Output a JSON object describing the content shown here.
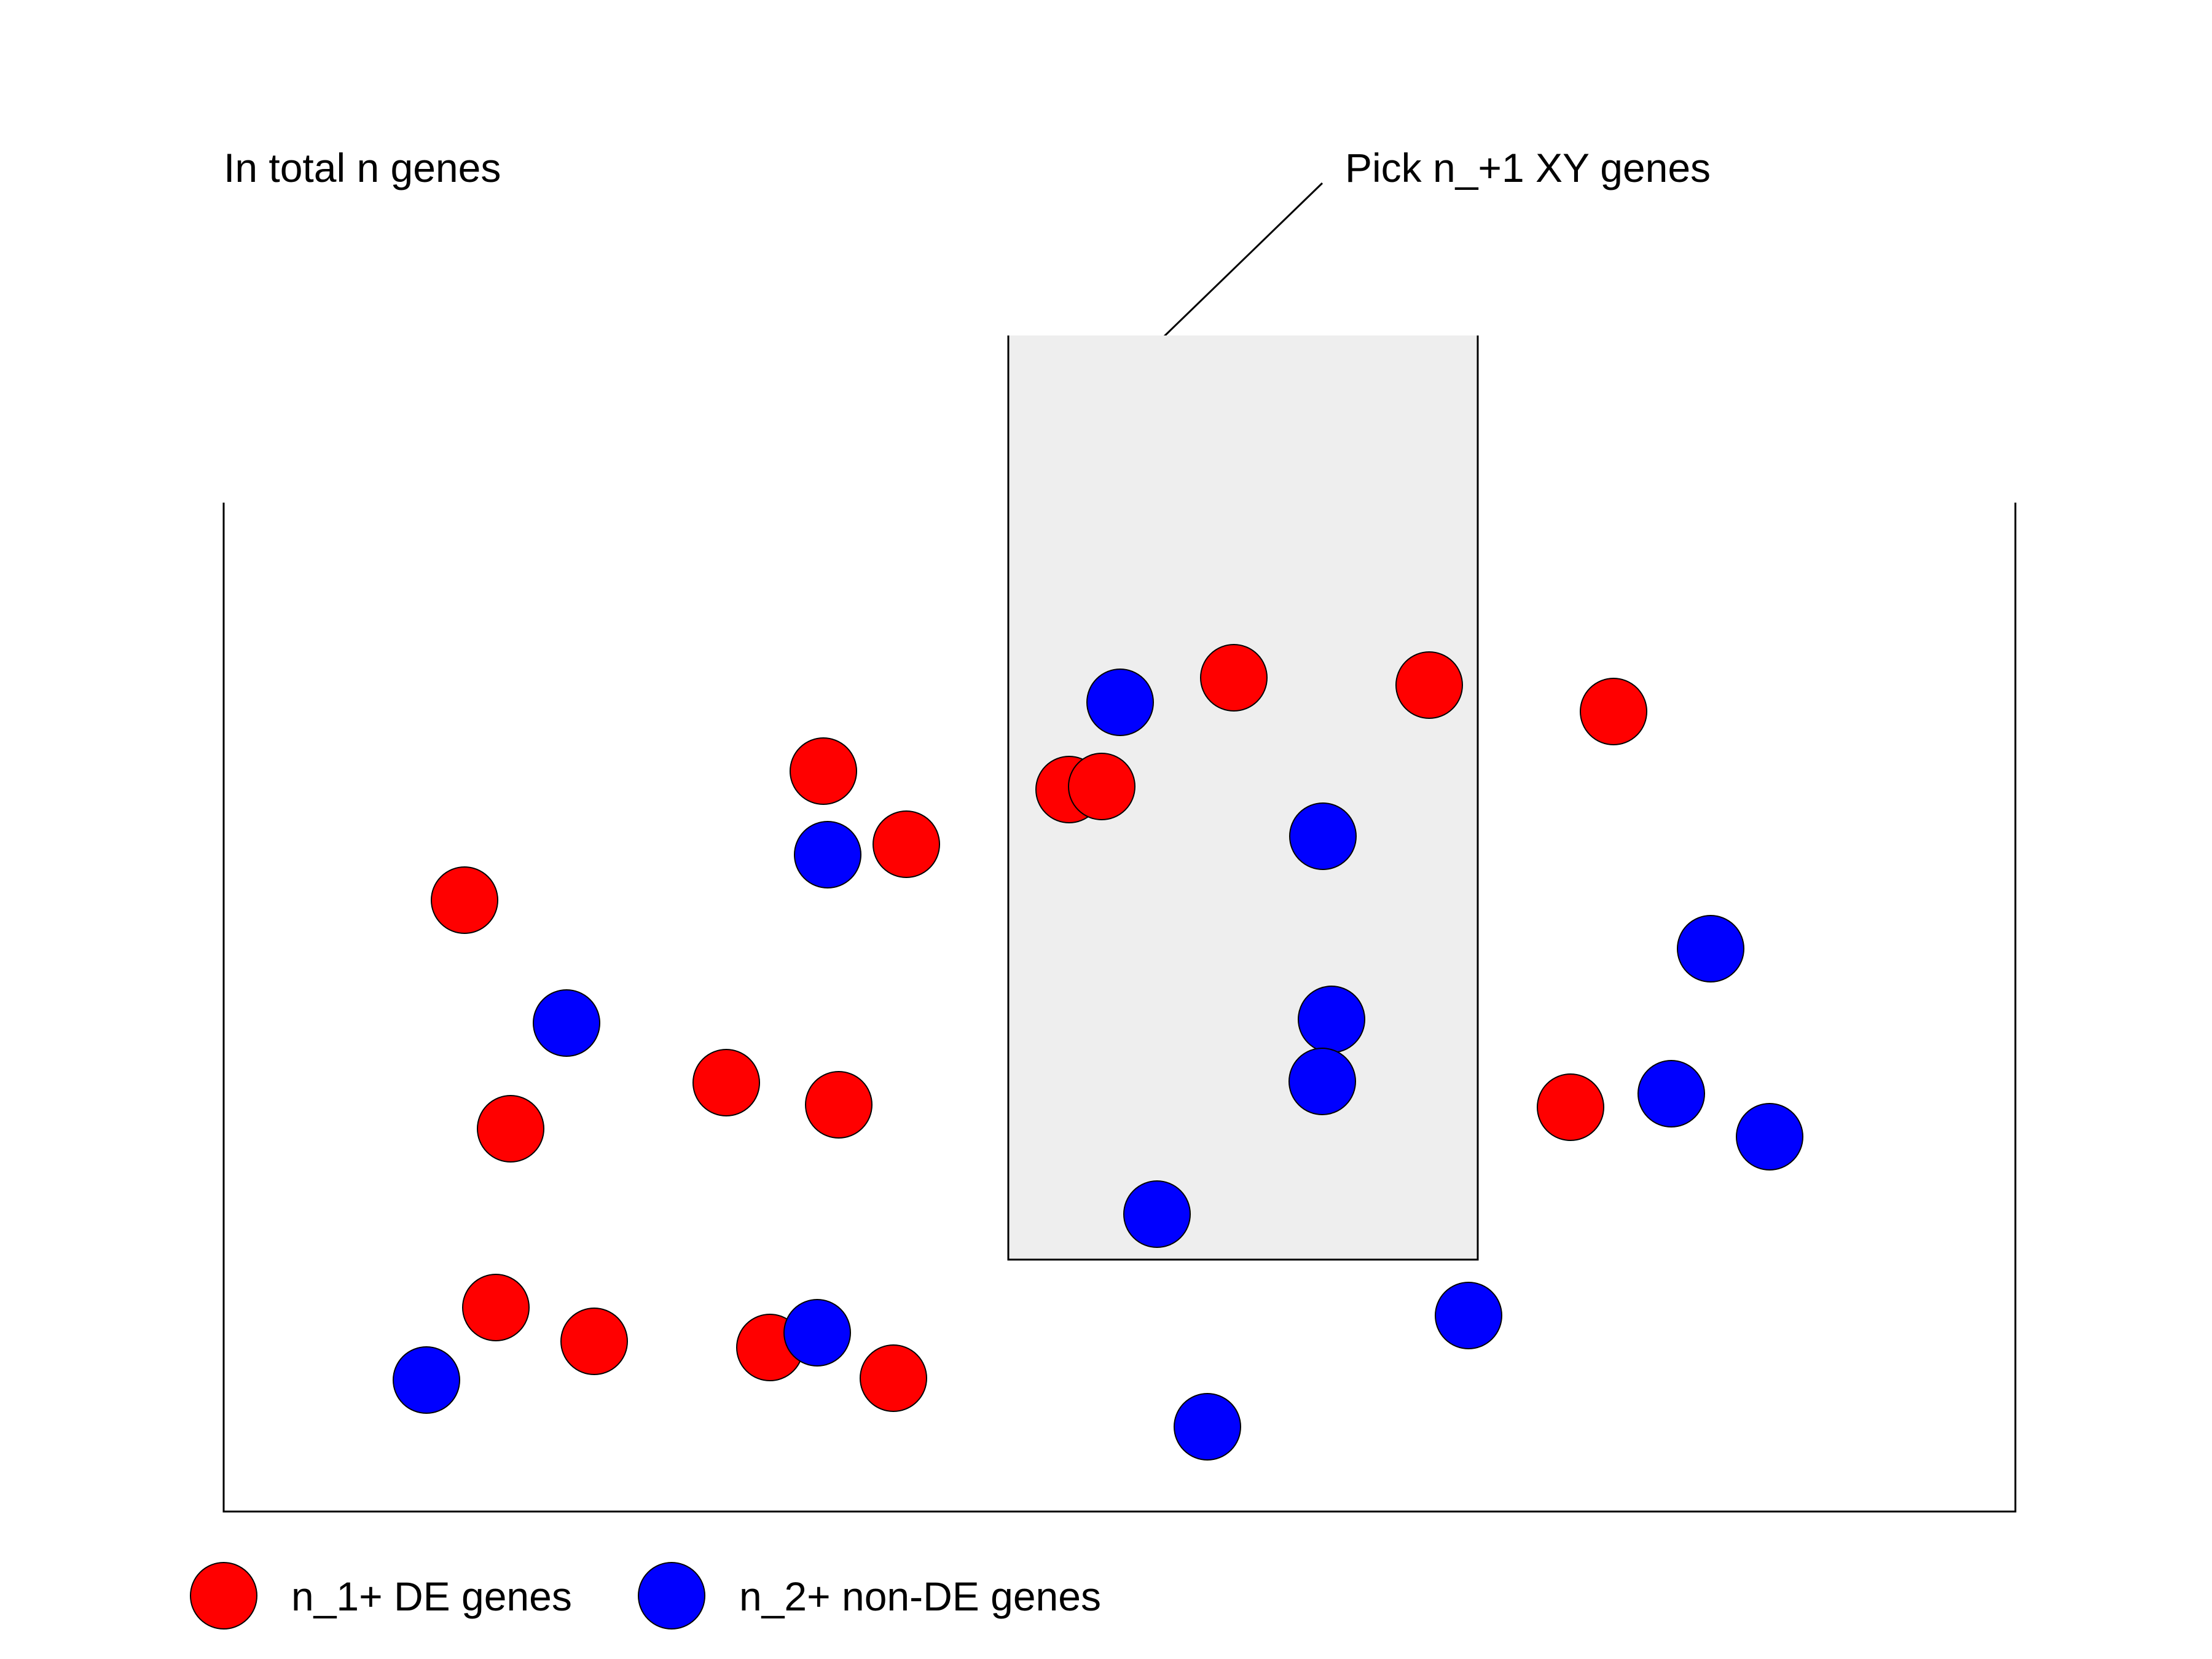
{
  "title": "In total n genes",
  "callout": "Pick n_+1 XY genes",
  "colors": {
    "de": "#ff0000",
    "non_de": "#0000ff",
    "selection_fill": "#eeeeee",
    "stroke": "#000000"
  },
  "legend": [
    {
      "label": "n_1+ DE genes",
      "color": "#ff0000"
    },
    {
      "label": "n_2+ non-DE genes",
      "color": "#0000ff"
    }
  ]
}
